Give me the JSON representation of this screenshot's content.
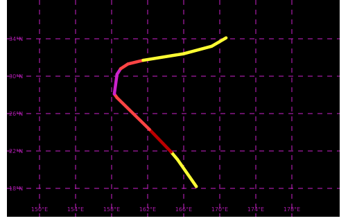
{
  "map": {
    "background": "#000000",
    "grid_color": "#cc22cc",
    "lon_ticks": [
      "150°E",
      "154°E",
      "158°E",
      "162°E",
      "166°E",
      "170°E",
      "174°E",
      "178°E"
    ],
    "lat_ticks": [
      "34°N",
      "30°N",
      "26°N",
      "22°N",
      "18°N"
    ],
    "lon_values": [
      150,
      154,
      158,
      162,
      166,
      170,
      174,
      178
    ],
    "lat_values": [
      34,
      30,
      26,
      22,
      18
    ],
    "intensity_colors": {
      "weak": "#ffff33",
      "moderate": "#ff4444",
      "strong": "#bb0000",
      "very_strong": "#cc22cc",
      "extratropical": "#22aa22"
    },
    "track": [
      {
        "lon": 167.4,
        "lat": 18.2,
        "cat": "weak"
      },
      {
        "lon": 165.3,
        "lat": 21.1,
        "cat": "weak"
      },
      {
        "lon": 164.6,
        "lat": 21.9,
        "cat": "strong"
      },
      {
        "lon": 162.7,
        "lat": 23.8,
        "cat": "strong"
      },
      {
        "lon": 162.2,
        "lat": 24.3,
        "cat": "moderate"
      },
      {
        "lon": 158.6,
        "lat": 27.7,
        "cat": "moderate"
      },
      {
        "lon": 158.3,
        "lat": 28.1,
        "cat": "very_strong"
      },
      {
        "lon": 158.6,
        "lat": 30.2,
        "cat": "very_strong"
      },
      {
        "lon": 159.0,
        "lat": 30.8,
        "cat": "moderate"
      },
      {
        "lon": 159.8,
        "lat": 31.3,
        "cat": "moderate"
      },
      {
        "lon": 161.5,
        "lat": 31.7,
        "cat": "weak"
      },
      {
        "lon": 166.0,
        "lat": 32.4,
        "cat": "weak"
      },
      {
        "lon": 169.1,
        "lat": 33.2,
        "cat": "weak"
      },
      {
        "lon": 170.7,
        "lat": 34.1,
        "cat": "extratropical"
      }
    ]
  }
}
